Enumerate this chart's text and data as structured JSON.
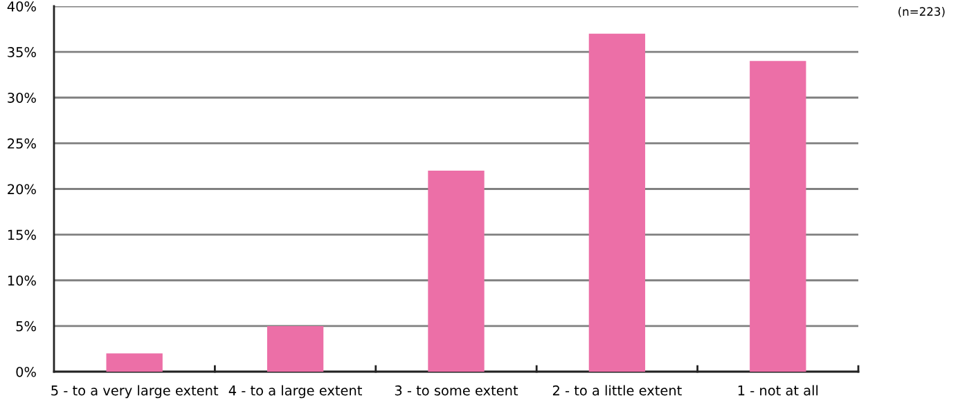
{
  "chart_data": {
    "type": "bar",
    "categories": [
      "5 - to a very large extent",
      "4 - to a large extent",
      "3 - to some extent",
      "2 - to a little extent",
      "1 - not at all"
    ],
    "values": [
      2,
      5,
      22,
      37,
      34
    ],
    "color": "#ec6fa7",
    "ylim": [
      0,
      40
    ],
    "yticks": [
      {
        "value": 0,
        "label": "0%"
      },
      {
        "value": 5,
        "label": "5%"
      },
      {
        "value": 10,
        "label": "10%"
      },
      {
        "value": 15,
        "label": "15%"
      },
      {
        "value": 20,
        "label": "20%"
      },
      {
        "value": 25,
        "label": "25%"
      },
      {
        "value": 30,
        "label": "30%"
      },
      {
        "value": 35,
        "label": "35%"
      },
      {
        "value": 40,
        "label": "40%"
      }
    ],
    "grid": "y",
    "annotations": [
      "(n=223)"
    ]
  }
}
